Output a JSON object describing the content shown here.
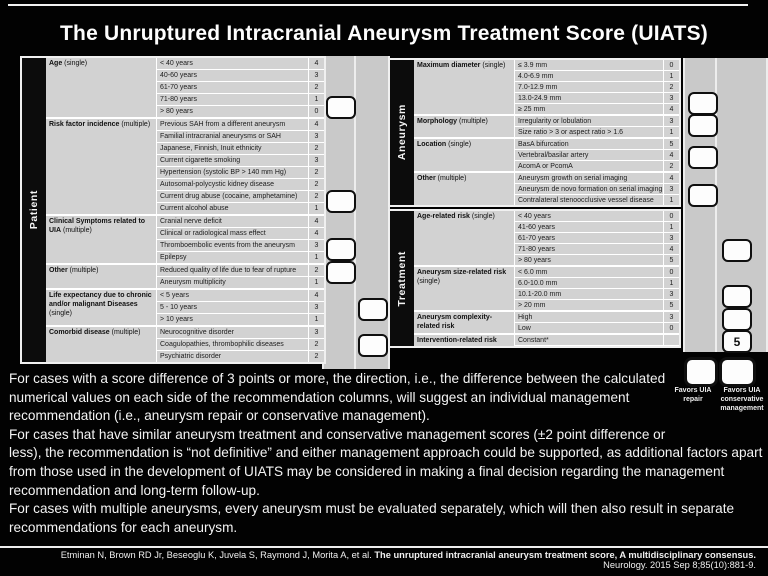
{
  "title": "The Unruptured Intracranial Aneurysm Treatment Score (UIATS)",
  "patient_table": {
    "group_label": "Patient",
    "sections": [
      {
        "name": "Age",
        "qualifier": "(single)",
        "rows": [
          {
            "label": "< 40 years",
            "score": "4"
          },
          {
            "label": "40-60 years",
            "score": "3"
          },
          {
            "label": "61-70 years",
            "score": "2"
          },
          {
            "label": "71-80 years",
            "score": "1"
          },
          {
            "label": "> 80 years",
            "score": "0"
          }
        ]
      },
      {
        "name": "Risk factor incidence",
        "qualifier": "(multiple)",
        "rows": [
          {
            "label": "Previous SAH from a different aneurysm",
            "score": "4"
          },
          {
            "label": "Familial intracranial aneurysms or SAH",
            "score": "3"
          },
          {
            "label": "Japanese, Finnish, Inuit ethnicity",
            "score": "2"
          },
          {
            "label": "Current cigarette smoking",
            "score": "3"
          },
          {
            "label": "Hypertension (systolic BP > 140 mm Hg)",
            "score": "2"
          },
          {
            "label": "Autosomal-polycystic kidney disease",
            "score": "2"
          },
          {
            "label": "Current drug abuse (cocaine, amphetamine)",
            "score": "2"
          },
          {
            "label": "Current alcohol abuse",
            "score": "1"
          }
        ]
      },
      {
        "name": "Clinical Symptoms related to UIA",
        "qualifier": "(multiple)",
        "rows": [
          {
            "label": "Cranial nerve deficit",
            "score": "4"
          },
          {
            "label": "Clinical or radiological mass effect",
            "score": "4"
          },
          {
            "label": "Thromboembolic events from the aneurysm",
            "score": "3"
          },
          {
            "label": "Epilepsy",
            "score": "1"
          }
        ]
      },
      {
        "name": "Other",
        "qualifier": "(multiple)",
        "rows": [
          {
            "label": "Reduced quality of life due to fear of rupture",
            "score": "2"
          },
          {
            "label": "Aneurysm multiplicity",
            "score": "1"
          }
        ]
      },
      {
        "name": "Life expectancy due to chronic and/or malignant Diseases",
        "qualifier": "(single)",
        "rows": [
          {
            "label": "< 5 years",
            "score": "4"
          },
          {
            "label": "5 - 10 years",
            "score": "3"
          },
          {
            "label": "> 10 years",
            "score": "1"
          }
        ]
      },
      {
        "name": "Comorbid disease",
        "qualifier": "(multiple)",
        "rows": [
          {
            "label": "Neurocognitive disorder",
            "score": "3"
          },
          {
            "label": "Coagulopathies, thrombophilic diseases",
            "score": "2"
          },
          {
            "label": "Psychiatric disorder",
            "score": "2"
          }
        ]
      }
    ]
  },
  "aneurysm_table": {
    "group_label": "Aneurysm",
    "sections": [
      {
        "name": "Maximum diameter",
        "qualifier": "(single)",
        "rows": [
          {
            "label": "≤ 3.9 mm",
            "score": "0"
          },
          {
            "label": "4.0-6.9 mm",
            "score": "1"
          },
          {
            "label": "7.0-12.9 mm",
            "score": "2"
          },
          {
            "label": "13.0-24.9 mm",
            "score": "3"
          },
          {
            "label": "≥ 25 mm",
            "score": "4"
          }
        ]
      },
      {
        "name": "Morphology",
        "qualifier": "(multiple)",
        "rows": [
          {
            "label": "Irregularity or lobulation",
            "score": "3"
          },
          {
            "label": "Size ratio > 3 or aspect ratio > 1.6",
            "score": "1"
          }
        ]
      },
      {
        "name": "Location",
        "qualifier": "(single)",
        "rows": [
          {
            "label": "BasA bifurcation",
            "score": "5"
          },
          {
            "label": "Vertebral/basilar artery",
            "score": "4"
          },
          {
            "label": "AcomA or PcomA",
            "score": "2"
          }
        ]
      },
      {
        "name": "Other",
        "qualifier": "(multiple)",
        "rows": [
          {
            "label": "Aneurysm growth on serial imaging",
            "score": "4"
          },
          {
            "label": "Aneurysm de novo formation on serial imaging",
            "score": "3"
          },
          {
            "label": "Contralateral stenoocclusive vessel disease",
            "score": "1"
          }
        ]
      }
    ]
  },
  "treatment_table": {
    "group_label": "Treatment",
    "sections": [
      {
        "name": "Age-related risk",
        "qualifier": "(single)",
        "rows": [
          {
            "label": "< 40 years",
            "score": "0"
          },
          {
            "label": "41-60 years",
            "score": "1"
          },
          {
            "label": "61-70 years",
            "score": "3"
          },
          {
            "label": "71-80 years",
            "score": "4"
          },
          {
            "label": "> 80 years",
            "score": "5"
          }
        ]
      },
      {
        "name": "Aneurysm size-related risk",
        "qualifier": "(single)",
        "rows": [
          {
            "label": "< 6.0 mm",
            "score": "0"
          },
          {
            "label": "6.0-10.0 mm",
            "score": "1"
          },
          {
            "label": "10.1-20.0 mm",
            "score": "3"
          },
          {
            "label": "> 20 mm",
            "score": "5"
          }
        ]
      },
      {
        "name": "Aneurysm complexity-related risk",
        "qualifier": "",
        "rows": [
          {
            "label": "High",
            "score": "3"
          },
          {
            "label": "Low",
            "score": "0"
          }
        ]
      },
      {
        "name": "Intervention-related risk",
        "qualifier": "",
        "rows": [
          {
            "label": "Constant*",
            "score": ""
          }
        ]
      }
    ]
  },
  "score_entry": {
    "intervention_score": "5"
  },
  "favors": {
    "repair": "Favors UIA repair",
    "conservative": "Favors UIA conservative management"
  },
  "paragraphs": [
    "For cases with a score difference of 3 points or more, the direction, i.e., the difference between the calculated numerical values on each side of the recommendation columns, will suggest an individual management recommendation (i.e., aneurysm repair or conservative management).",
    "For cases that have similar aneurysm treatment and conservative management scores (±2 point difference or less), the recommendation is “not definitive” and either management approach could be supported, as additional factors apart from those used in the development of UIATS may be considered in making a final decision regarding the management recommendation and long-term follow-up.",
    "For cases with multiple aneurysms, every aneurysm must be evaluated separately, which will then also result in separate recommendations for each aneurysm."
  ],
  "citation": {
    "authors": "Etminan N, Brown RD Jr, Beseoglu K, Juvela S, Raymond J, Morita A, et al. ",
    "title": "The unruptured intracranial aneurysm treatment score, A multidisciplinary consensus.",
    "ref": "Neurology. 2015 Sep 8;85(10):881-9."
  },
  "colors": {
    "table_gray": "#d2d2d2",
    "slide_bg": "#020202",
    "line_white": "#f0f0f0"
  }
}
